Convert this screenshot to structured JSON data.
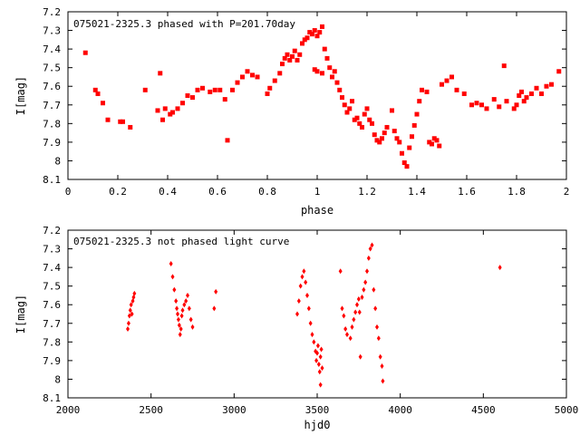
{
  "chart_data": [
    {
      "type": "scatter",
      "title": "075021-2325.3 phased with P=201.70day",
      "xlabel": "phase",
      "ylabel": "I[mag]",
      "xlim": [
        0,
        2
      ],
      "ylim": [
        8.1,
        7.2
      ],
      "y_inverted": true,
      "grid": false,
      "marker_color": "#ff0000",
      "x_ticks": [
        0,
        0.2,
        0.4,
        0.6,
        0.8,
        1,
        1.2,
        1.4,
        1.6,
        1.8,
        2
      ],
      "x_tick_labels": [
        "0",
        "0.2",
        "0.4",
        "0.6",
        "0.8",
        "1",
        "1.2",
        "1.4",
        "1.6",
        "1.8",
        "2"
      ],
      "y_ticks": [
        7.2,
        7.3,
        7.4,
        7.5,
        7.6,
        7.7,
        7.8,
        7.9,
        8,
        8.1
      ],
      "y_tick_labels": [
        "7.2",
        "7.3",
        "7.4",
        "7.5",
        "7.6",
        "7.7",
        "7.8",
        "7.9",
        "8",
        "8.1"
      ],
      "points": [
        [
          0.07,
          7.42
        ],
        [
          0.11,
          7.62
        ],
        [
          0.12,
          7.64
        ],
        [
          0.14,
          7.69
        ],
        [
          0.16,
          7.78
        ],
        [
          0.21,
          7.79
        ],
        [
          0.22,
          7.79
        ],
        [
          0.25,
          7.82
        ],
        [
          0.31,
          7.62
        ],
        [
          0.36,
          7.73
        ],
        [
          0.37,
          7.53
        ],
        [
          0.38,
          7.78
        ],
        [
          0.39,
          7.72
        ],
        [
          0.41,
          7.75
        ],
        [
          0.42,
          7.74
        ],
        [
          0.44,
          7.72
        ],
        [
          0.46,
          7.69
        ],
        [
          0.48,
          7.65
        ],
        [
          0.5,
          7.66
        ],
        [
          0.52,
          7.62
        ],
        [
          0.54,
          7.61
        ],
        [
          0.57,
          7.63
        ],
        [
          0.59,
          7.62
        ],
        [
          0.61,
          7.62
        ],
        [
          0.63,
          7.67
        ],
        [
          0.64,
          7.89
        ],
        [
          0.66,
          7.62
        ],
        [
          0.68,
          7.58
        ],
        [
          0.7,
          7.55
        ],
        [
          0.72,
          7.52
        ],
        [
          0.74,
          7.54
        ],
        [
          0.76,
          7.55
        ],
        [
          0.8,
          7.64
        ],
        [
          0.81,
          7.61
        ],
        [
          0.83,
          7.57
        ],
        [
          0.85,
          7.53
        ],
        [
          0.86,
          7.48
        ],
        [
          0.87,
          7.45
        ],
        [
          0.88,
          7.43
        ],
        [
          0.89,
          7.46
        ],
        [
          0.9,
          7.44
        ],
        [
          0.91,
          7.41
        ],
        [
          0.92,
          7.46
        ],
        [
          0.93,
          7.43
        ],
        [
          0.94,
          7.37
        ],
        [
          0.95,
          7.35
        ],
        [
          0.96,
          7.34
        ],
        [
          0.97,
          7.31
        ],
        [
          0.98,
          7.32
        ],
        [
          0.99,
          7.3
        ],
        [
          1.0,
          7.33
        ],
        [
          1.01,
          7.31
        ],
        [
          1.02,
          7.28
        ],
        [
          0.99,
          7.51
        ],
        [
          1.0,
          7.52
        ],
        [
          1.02,
          7.53
        ],
        [
          1.03,
          7.4
        ],
        [
          1.04,
          7.45
        ],
        [
          1.05,
          7.5
        ],
        [
          1.06,
          7.55
        ],
        [
          1.07,
          7.52
        ],
        [
          1.08,
          7.58
        ],
        [
          1.09,
          7.62
        ],
        [
          1.1,
          7.66
        ],
        [
          1.11,
          7.7
        ],
        [
          1.12,
          7.74
        ],
        [
          1.13,
          7.72
        ],
        [
          1.14,
          7.68
        ],
        [
          1.15,
          7.78
        ],
        [
          1.16,
          7.77
        ],
        [
          1.17,
          7.8
        ],
        [
          1.18,
          7.82
        ],
        [
          1.19,
          7.75
        ],
        [
          1.2,
          7.72
        ],
        [
          1.21,
          7.78
        ],
        [
          1.22,
          7.8
        ],
        [
          1.23,
          7.86
        ],
        [
          1.24,
          7.89
        ],
        [
          1.25,
          7.9
        ],
        [
          1.26,
          7.88
        ],
        [
          1.27,
          7.85
        ],
        [
          1.28,
          7.82
        ],
        [
          1.3,
          7.73
        ],
        [
          1.31,
          7.84
        ],
        [
          1.32,
          7.88
        ],
        [
          1.33,
          7.9
        ],
        [
          1.34,
          7.96
        ],
        [
          1.35,
          8.01
        ],
        [
          1.36,
          8.03
        ],
        [
          1.37,
          7.93
        ],
        [
          1.38,
          7.87
        ],
        [
          1.39,
          7.81
        ],
        [
          1.4,
          7.75
        ],
        [
          1.41,
          7.68
        ],
        [
          1.42,
          7.62
        ],
        [
          1.44,
          7.63
        ],
        [
          1.45,
          7.9
        ],
        [
          1.46,
          7.91
        ],
        [
          1.47,
          7.88
        ],
        [
          1.48,
          7.89
        ],
        [
          1.49,
          7.92
        ],
        [
          1.5,
          7.59
        ],
        [
          1.52,
          7.57
        ],
        [
          1.54,
          7.55
        ],
        [
          1.56,
          7.62
        ],
        [
          1.59,
          7.64
        ],
        [
          1.62,
          7.7
        ],
        [
          1.64,
          7.69
        ],
        [
          1.66,
          7.7
        ],
        [
          1.68,
          7.72
        ],
        [
          1.71,
          7.67
        ],
        [
          1.73,
          7.71
        ],
        [
          1.75,
          7.49
        ],
        [
          1.76,
          7.68
        ],
        [
          1.79,
          7.72
        ],
        [
          1.8,
          7.7
        ],
        [
          1.81,
          7.65
        ],
        [
          1.82,
          7.63
        ],
        [
          1.83,
          7.68
        ],
        [
          1.84,
          7.66
        ],
        [
          1.86,
          7.64
        ],
        [
          1.88,
          7.61
        ],
        [
          1.9,
          7.64
        ],
        [
          1.92,
          7.6
        ],
        [
          1.94,
          7.59
        ],
        [
          1.97,
          7.52
        ]
      ]
    },
    {
      "type": "scatter",
      "title": "075021-2325.3 not phased light curve",
      "xlabel": "hjd0",
      "ylabel": "I[mag]",
      "xlim": [
        2000,
        5000
      ],
      "ylim": [
        8.1,
        7.2
      ],
      "y_inverted": true,
      "grid": false,
      "marker_color": "#ff0000",
      "x_ticks": [
        2000,
        2500,
        3000,
        3500,
        4000,
        4500,
        5000
      ],
      "x_tick_labels": [
        "2000",
        "2500",
        "3000",
        "3500",
        "4000",
        "4500",
        "5000"
      ],
      "y_ticks": [
        7.2,
        7.3,
        7.4,
        7.5,
        7.6,
        7.7,
        7.8,
        7.9,
        8,
        8.1
      ],
      "y_tick_labels": [
        "7.2",
        "7.3",
        "7.4",
        "7.5",
        "7.6",
        "7.7",
        "7.8",
        "7.9",
        "8",
        "8.1"
      ],
      "points": [
        [
          2360,
          7.73
        ],
        [
          2365,
          7.7
        ],
        [
          2370,
          7.66
        ],
        [
          2375,
          7.63
        ],
        [
          2380,
          7.6
        ],
        [
          2385,
          7.65
        ],
        [
          2390,
          7.58
        ],
        [
          2395,
          7.56
        ],
        [
          2400,
          7.54
        ],
        [
          2620,
          7.38
        ],
        [
          2630,
          7.45
        ],
        [
          2640,
          7.52
        ],
        [
          2650,
          7.58
        ],
        [
          2655,
          7.62
        ],
        [
          2660,
          7.65
        ],
        [
          2665,
          7.68
        ],
        [
          2670,
          7.71
        ],
        [
          2675,
          7.76
        ],
        [
          2680,
          7.73
        ],
        [
          2685,
          7.66
        ],
        [
          2690,
          7.63
        ],
        [
          2700,
          7.6
        ],
        [
          2710,
          7.58
        ],
        [
          2720,
          7.55
        ],
        [
          2730,
          7.62
        ],
        [
          2740,
          7.68
        ],
        [
          2750,
          7.72
        ],
        [
          2880,
          7.62
        ],
        [
          2890,
          7.53
        ],
        [
          3380,
          7.65
        ],
        [
          3390,
          7.58
        ],
        [
          3400,
          7.5
        ],
        [
          3410,
          7.45
        ],
        [
          3420,
          7.42
        ],
        [
          3430,
          7.48
        ],
        [
          3440,
          7.55
        ],
        [
          3450,
          7.62
        ],
        [
          3460,
          7.7
        ],
        [
          3470,
          7.76
        ],
        [
          3480,
          7.8
        ],
        [
          3490,
          7.85
        ],
        [
          3495,
          7.9
        ],
        [
          3500,
          7.86
        ],
        [
          3505,
          7.82
        ],
        [
          3510,
          7.92
        ],
        [
          3515,
          7.96
        ],
        [
          3520,
          7.88
        ],
        [
          3525,
          7.84
        ],
        [
          3530,
          7.94
        ],
        [
          3520,
          8.03
        ],
        [
          3640,
          7.42
        ],
        [
          3650,
          7.62
        ],
        [
          3660,
          7.66
        ],
        [
          3670,
          7.73
        ],
        [
          3680,
          7.76
        ],
        [
          3700,
          7.78
        ],
        [
          3710,
          7.72
        ],
        [
          3720,
          7.68
        ],
        [
          3730,
          7.64
        ],
        [
          3740,
          7.6
        ],
        [
          3750,
          7.57
        ],
        [
          3755,
          7.64
        ],
        [
          3760,
          7.88
        ],
        [
          3770,
          7.56
        ],
        [
          3780,
          7.52
        ],
        [
          3790,
          7.48
        ],
        [
          3800,
          7.42
        ],
        [
          3810,
          7.35
        ],
        [
          3820,
          7.3
        ],
        [
          3830,
          7.28
        ],
        [
          3840,
          7.52
        ],
        [
          3850,
          7.62
        ],
        [
          3860,
          7.72
        ],
        [
          3870,
          7.78
        ],
        [
          3880,
          7.88
        ],
        [
          3890,
          7.93
        ],
        [
          3895,
          8.01
        ],
        [
          4600,
          7.4
        ]
      ]
    }
  ]
}
